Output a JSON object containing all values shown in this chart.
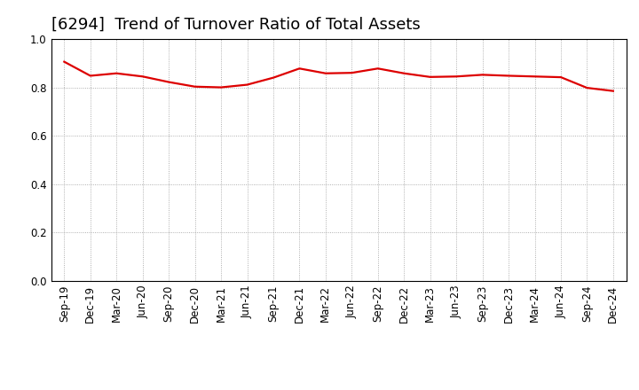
{
  "title": "[6294]  Trend of Turnover Ratio of Total Assets",
  "x_labels": [
    "Sep-19",
    "Dec-19",
    "Mar-20",
    "Jun-20",
    "Sep-20",
    "Dec-20",
    "Mar-21",
    "Jun-21",
    "Sep-21",
    "Dec-21",
    "Mar-22",
    "Jun-22",
    "Sep-22",
    "Dec-22",
    "Mar-23",
    "Jun-23",
    "Sep-23",
    "Dec-23",
    "Mar-24",
    "Jun-24",
    "Sep-24",
    "Dec-24"
  ],
  "y_values": [
    0.906,
    0.848,
    0.858,
    0.845,
    0.822,
    0.803,
    0.8,
    0.811,
    0.84,
    0.878,
    0.858,
    0.86,
    0.878,
    0.858,
    0.843,
    0.845,
    0.852,
    0.848,
    0.845,
    0.842,
    0.798,
    0.785
  ],
  "line_color": "#dd0000",
  "line_width": 1.6,
  "ylim": [
    0.0,
    1.0
  ],
  "yticks": [
    0.0,
    0.2,
    0.4,
    0.6,
    0.8,
    1.0
  ],
  "background_color": "#ffffff",
  "plot_bg_color": "#ffffff",
  "grid_color": "#999999",
  "title_fontsize": 13,
  "tick_fontsize": 8.5,
  "title_color": "#000000"
}
